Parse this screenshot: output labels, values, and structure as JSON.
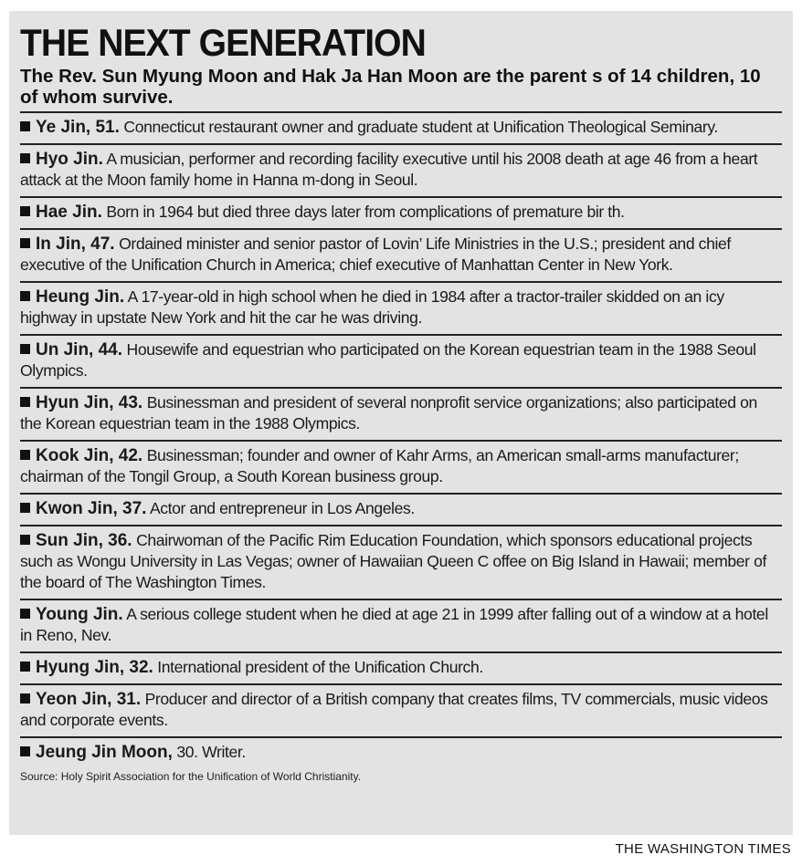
{
  "title": "THE NEXT GENERATION",
  "subtitle": "The Rev. Sun Myung Moon and Hak Ja Han Moon are the parent s of 14 children, 10 of whom survive.",
  "entries": [
    {
      "name": "Ye Jin, 51.",
      "text": " Connecticut restaurant owner and graduate student at Unification Theological Seminary."
    },
    {
      "name": "Hyo Jin.",
      "text": " A musician, performer and recording facility executive until his 2008 death at age 46 from a heart attack at the Moon family home in Hanna m-dong in Seoul."
    },
    {
      "name": "Hae Jin.",
      "text": " Born in 1964 but died three days later from complications of premature bir th."
    },
    {
      "name": "In Jin, 47.",
      "text": " Ordained minister and senior pastor of Lovin’ Life Ministries in the U.S.; president and chief executive of the Unification Church in America; chief executive of Manhattan Center in New York."
    },
    {
      "name": "Heung Jin.",
      "text": " A 17-year-old in high school when he died in 1984 after a tractor-trailer skidded on an icy highway in upstate New York and hit the car he was driving."
    },
    {
      "name": "Un Jin, 44.",
      "text": " Housewife and equestrian who participated on the Korean equestrian team in the 1988 Seoul Olympics."
    },
    {
      "name": "Hyun Jin, 43.",
      "text": " Businessman and president of several nonprofit service organizations; also participated on the Korean equestrian team in the 1988 Olympics."
    },
    {
      "name": "Kook Jin, 42.",
      "text": " Businessman; founder and owner of Kahr Arms, an American small-arms manufacturer; chairman of the Tongil Group, a South Korean business group."
    },
    {
      "name": "Kwon Jin, 37.",
      "text": " Actor and entrepreneur in Los Angeles."
    },
    {
      "name": "Sun Jin, 36.",
      "text": " Chairwoman of the Pacific Rim Education Foundation, which sponsors educational projects such as Wongu University in Las Vegas; owner of Hawaiian Queen C offee on Big Island in Hawaii; member of the board of The Washington Times."
    },
    {
      "name": "Young Jin.",
      "text": " A serious college student when he died at age 21 in 1999 after falling out of a window at a hotel in Reno, Nev."
    },
    {
      "name": "Hyung Jin, 32.",
      "text": " International president of the Unification Church."
    },
    {
      "name": "Yeon Jin, 31.",
      "text": " Producer and director of a British company that creates films, TV commercials, music videos and corporate events."
    },
    {
      "name": "Jeung Jin Moon,",
      "text": " 30. Writer."
    }
  ],
  "source": "Source: Holy Spirit Association for the Unification of World Christianity.",
  "credit": "THE WASHINGTON TIMES"
}
